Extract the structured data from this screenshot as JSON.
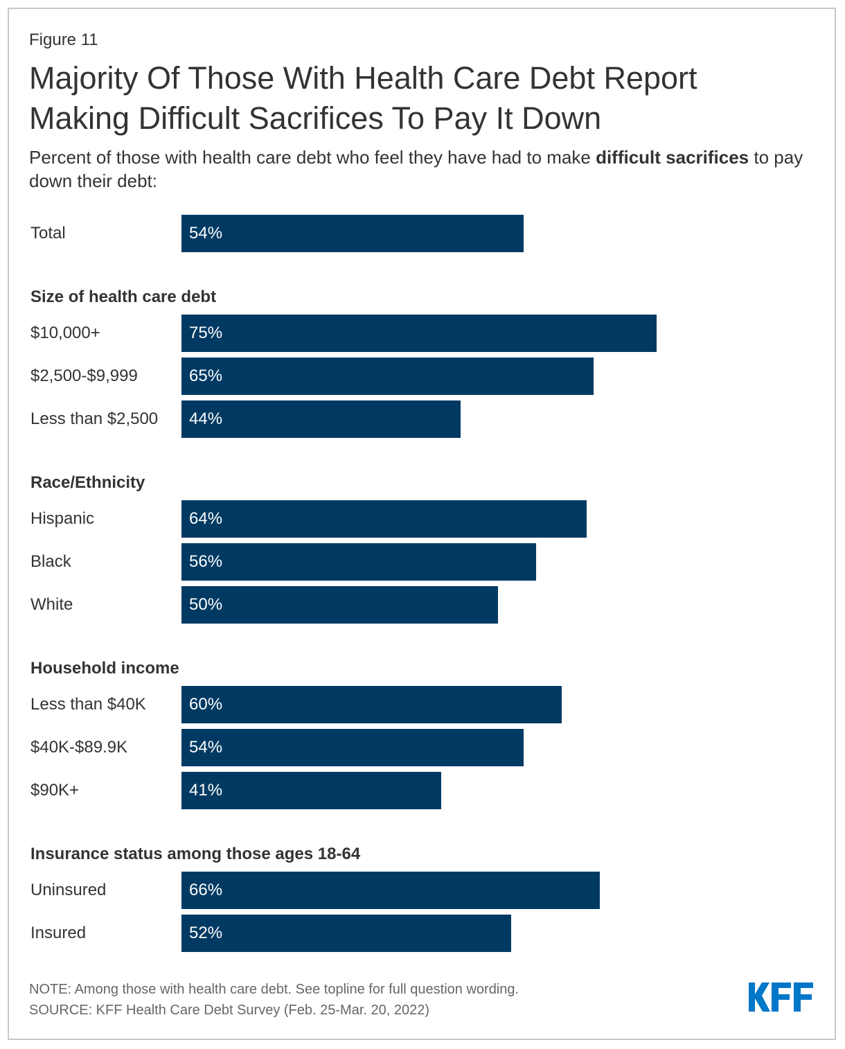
{
  "figure_label": "Figure 11",
  "title": "Majority Of Those With Health Care Debt Report Making Difficult Sacrifices To Pay It Down",
  "subtitle": {
    "before": "Percent of those with health care debt who feel they have had to make ",
    "bold": "difficult sacrifices",
    "after": " to pay down their debt:"
  },
  "chart_data": {
    "type": "bar",
    "orientation": "horizontal",
    "unit": "%",
    "xlim": [
      0,
      100
    ],
    "bar_color": "#003a63",
    "groups": [
      {
        "header": "",
        "categories": [
          "Total"
        ],
        "values": [
          54
        ]
      },
      {
        "header": "Size of health care debt",
        "categories": [
          "$10,000+",
          "$2,500-$9,999",
          "Less than $2,500"
        ],
        "values": [
          75,
          65,
          44
        ]
      },
      {
        "header": "Race/Ethnicity",
        "categories": [
          "Hispanic",
          "Black",
          "White"
        ],
        "values": [
          64,
          56,
          50
        ]
      },
      {
        "header": "Household income",
        "categories": [
          "Less than $40K",
          "$40K-$89.9K",
          "$90K+"
        ],
        "values": [
          60,
          54,
          41
        ]
      },
      {
        "header": "Insurance status among those ages 18-64",
        "categories": [
          "Uninsured",
          "Insured"
        ],
        "values": [
          66,
          52
        ]
      }
    ]
  },
  "note": "NOTE: Among those with health care debt. See topline for full question wording.",
  "source": "SOURCE: KFF Health Care Debt Survey (Feb. 25-Mar. 20, 2022)",
  "logo": {
    "text": "KFF",
    "color": "#0077c8"
  }
}
